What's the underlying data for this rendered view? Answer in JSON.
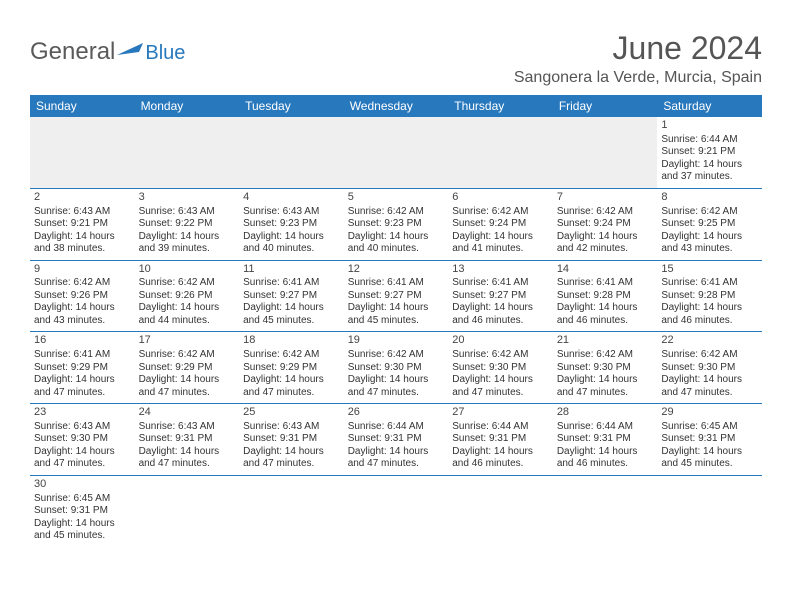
{
  "logo": {
    "text1": "General",
    "text2": "Blue"
  },
  "title": "June 2024",
  "location": "Sangonera la Verde, Murcia, Spain",
  "colors": {
    "accent": "#2878bd",
    "header_text": "#555",
    "body_text": "#333",
    "grid_bg": "#efefef"
  },
  "weekdays": [
    "Sunday",
    "Monday",
    "Tuesday",
    "Wednesday",
    "Thursday",
    "Friday",
    "Saturday"
  ],
  "weeks": [
    [
      null,
      null,
      null,
      null,
      null,
      null,
      {
        "d": "1",
        "sr": "6:44 AM",
        "ss": "9:21 PM",
        "dl": "14 hours and 37 minutes."
      }
    ],
    [
      {
        "d": "2",
        "sr": "6:43 AM",
        "ss": "9:21 PM",
        "dl": "14 hours and 38 minutes."
      },
      {
        "d": "3",
        "sr": "6:43 AM",
        "ss": "9:22 PM",
        "dl": "14 hours and 39 minutes."
      },
      {
        "d": "4",
        "sr": "6:43 AM",
        "ss": "9:23 PM",
        "dl": "14 hours and 40 minutes."
      },
      {
        "d": "5",
        "sr": "6:42 AM",
        "ss": "9:23 PM",
        "dl": "14 hours and 40 minutes."
      },
      {
        "d": "6",
        "sr": "6:42 AM",
        "ss": "9:24 PM",
        "dl": "14 hours and 41 minutes."
      },
      {
        "d": "7",
        "sr": "6:42 AM",
        "ss": "9:24 PM",
        "dl": "14 hours and 42 minutes."
      },
      {
        "d": "8",
        "sr": "6:42 AM",
        "ss": "9:25 PM",
        "dl": "14 hours and 43 minutes."
      }
    ],
    [
      {
        "d": "9",
        "sr": "6:42 AM",
        "ss": "9:26 PM",
        "dl": "14 hours and 43 minutes."
      },
      {
        "d": "10",
        "sr": "6:42 AM",
        "ss": "9:26 PM",
        "dl": "14 hours and 44 minutes."
      },
      {
        "d": "11",
        "sr": "6:41 AM",
        "ss": "9:27 PM",
        "dl": "14 hours and 45 minutes."
      },
      {
        "d": "12",
        "sr": "6:41 AM",
        "ss": "9:27 PM",
        "dl": "14 hours and 45 minutes."
      },
      {
        "d": "13",
        "sr": "6:41 AM",
        "ss": "9:27 PM",
        "dl": "14 hours and 46 minutes."
      },
      {
        "d": "14",
        "sr": "6:41 AM",
        "ss": "9:28 PM",
        "dl": "14 hours and 46 minutes."
      },
      {
        "d": "15",
        "sr": "6:41 AM",
        "ss": "9:28 PM",
        "dl": "14 hours and 46 minutes."
      }
    ],
    [
      {
        "d": "16",
        "sr": "6:41 AM",
        "ss": "9:29 PM",
        "dl": "14 hours and 47 minutes."
      },
      {
        "d": "17",
        "sr": "6:42 AM",
        "ss": "9:29 PM",
        "dl": "14 hours and 47 minutes."
      },
      {
        "d": "18",
        "sr": "6:42 AM",
        "ss": "9:29 PM",
        "dl": "14 hours and 47 minutes."
      },
      {
        "d": "19",
        "sr": "6:42 AM",
        "ss": "9:30 PM",
        "dl": "14 hours and 47 minutes."
      },
      {
        "d": "20",
        "sr": "6:42 AM",
        "ss": "9:30 PM",
        "dl": "14 hours and 47 minutes."
      },
      {
        "d": "21",
        "sr": "6:42 AM",
        "ss": "9:30 PM",
        "dl": "14 hours and 47 minutes."
      },
      {
        "d": "22",
        "sr": "6:42 AM",
        "ss": "9:30 PM",
        "dl": "14 hours and 47 minutes."
      }
    ],
    [
      {
        "d": "23",
        "sr": "6:43 AM",
        "ss": "9:30 PM",
        "dl": "14 hours and 47 minutes."
      },
      {
        "d": "24",
        "sr": "6:43 AM",
        "ss": "9:31 PM",
        "dl": "14 hours and 47 minutes."
      },
      {
        "d": "25",
        "sr": "6:43 AM",
        "ss": "9:31 PM",
        "dl": "14 hours and 47 minutes."
      },
      {
        "d": "26",
        "sr": "6:44 AM",
        "ss": "9:31 PM",
        "dl": "14 hours and 47 minutes."
      },
      {
        "d": "27",
        "sr": "6:44 AM",
        "ss": "9:31 PM",
        "dl": "14 hours and 46 minutes."
      },
      {
        "d": "28",
        "sr": "6:44 AM",
        "ss": "9:31 PM",
        "dl": "14 hours and 46 minutes."
      },
      {
        "d": "29",
        "sr": "6:45 AM",
        "ss": "9:31 PM",
        "dl": "14 hours and 45 minutes."
      }
    ],
    [
      {
        "d": "30",
        "sr": "6:45 AM",
        "ss": "9:31 PM",
        "dl": "14 hours and 45 minutes."
      },
      null,
      null,
      null,
      null,
      null,
      null
    ]
  ],
  "labels": {
    "sunrise": "Sunrise:",
    "sunset": "Sunset:",
    "daylight": "Daylight:"
  }
}
